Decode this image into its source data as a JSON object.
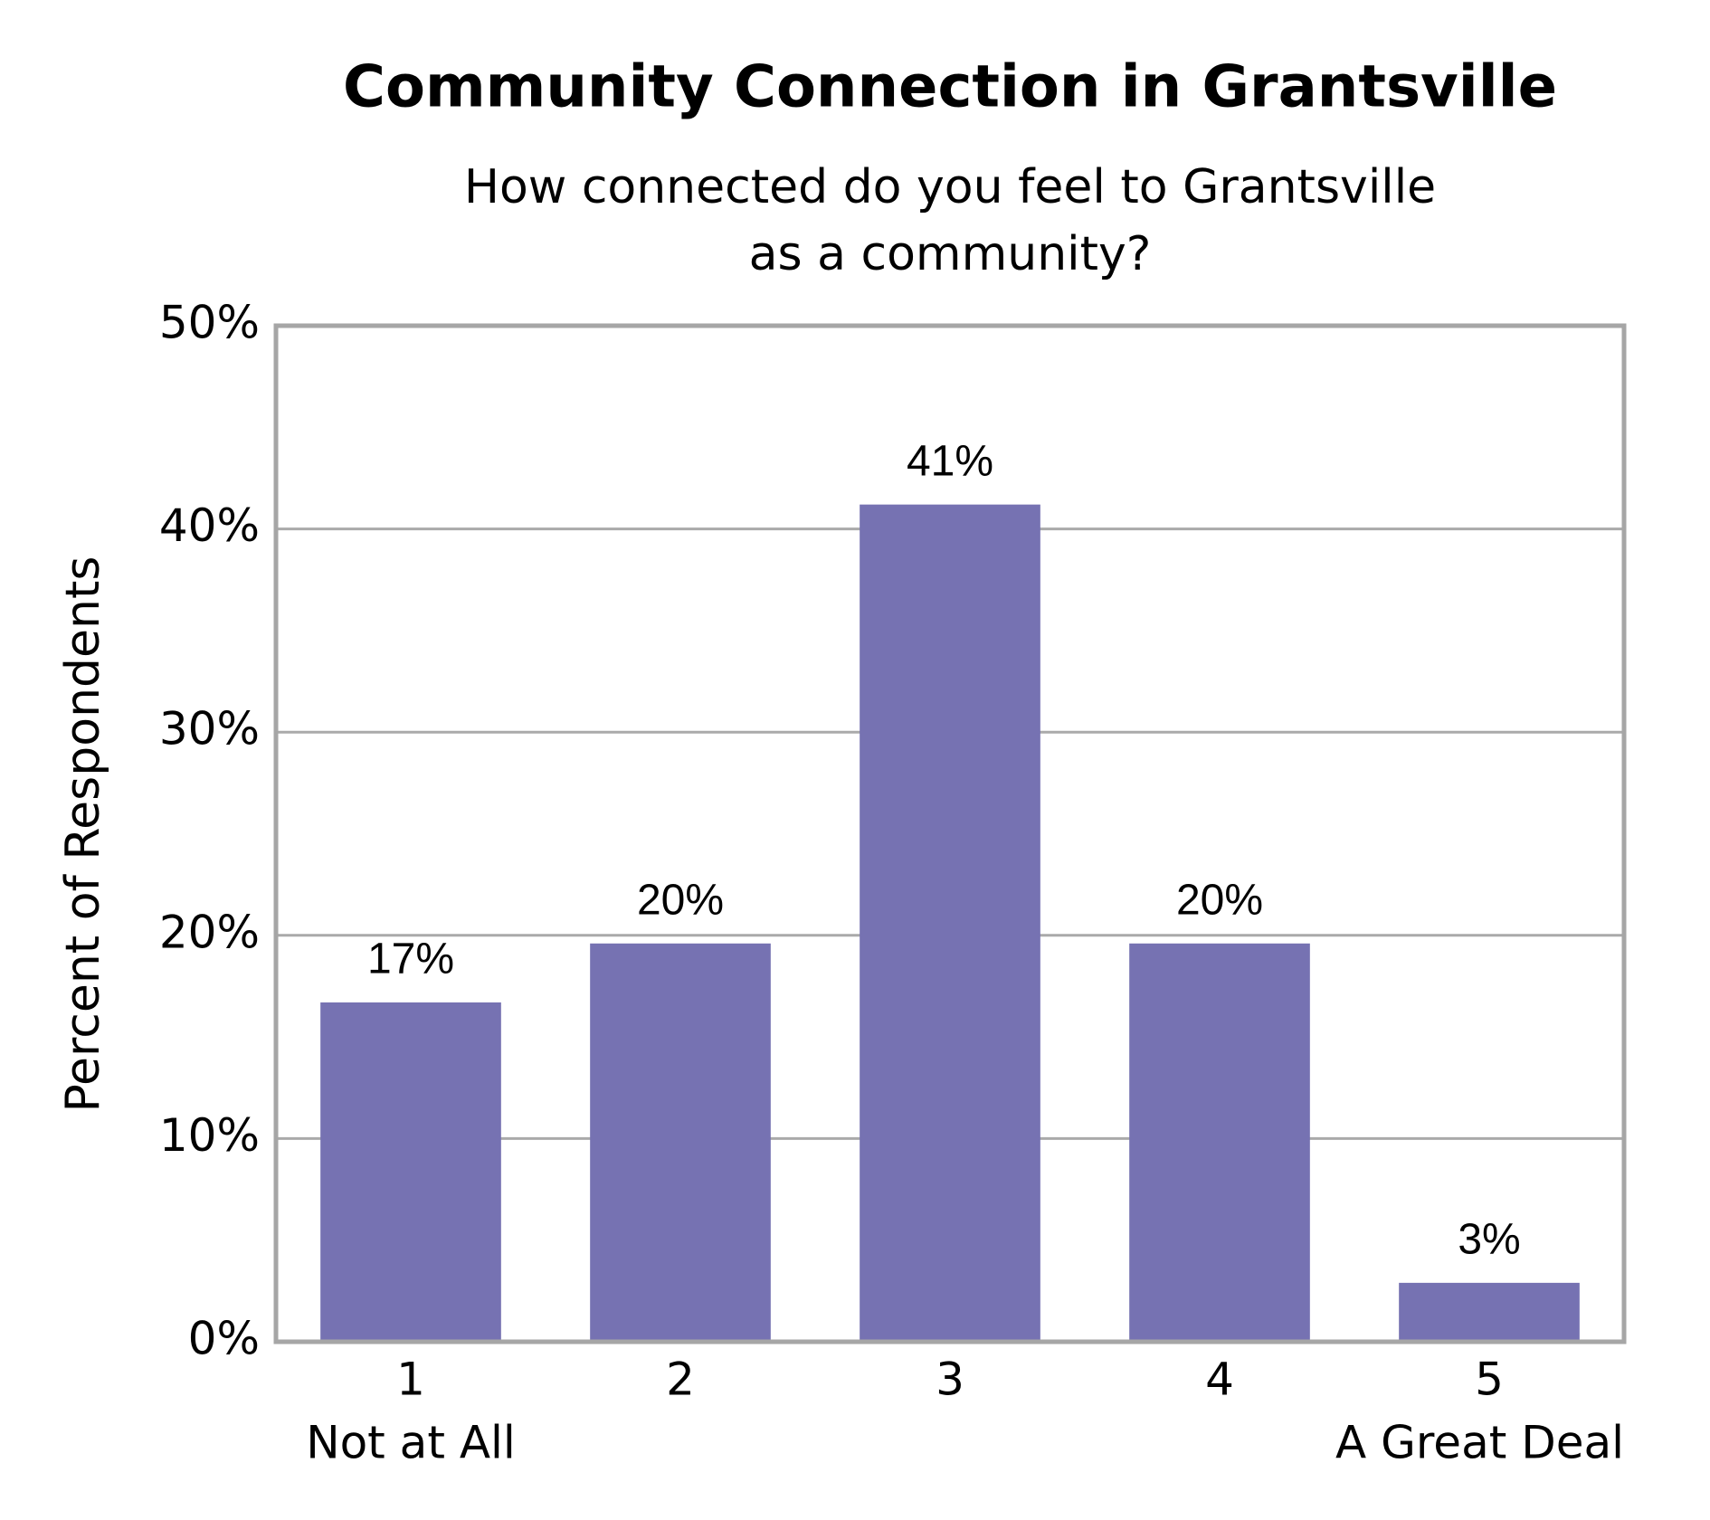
{
  "chart_data": {
    "type": "bar",
    "title": "Community Connection in Grantsville",
    "subtitle": [
      "How connected do you feel to Grantsville",
      "as a community?"
    ],
    "y_label": "Percent of Respondents",
    "categories": [
      "1",
      "2",
      "3",
      "4",
      "5"
    ],
    "category_sublabels": [
      "Not at All",
      null,
      null,
      null,
      "A Great Deal"
    ],
    "values": [
      16.7,
      19.6,
      41.2,
      19.6,
      2.9
    ],
    "value_labels": [
      "17%",
      "20%",
      "41%",
      "20%",
      "3%"
    ],
    "color": "#7672b2",
    "ylim": [
      0,
      50
    ],
    "yticks": [
      {
        "value": 0,
        "label": "0%"
      },
      {
        "value": 10,
        "label": "10%"
      },
      {
        "value": 20,
        "label": "20%"
      },
      {
        "value": 30,
        "label": "30%"
      },
      {
        "value": 40,
        "label": "40%"
      },
      {
        "value": 50,
        "label": "50%"
      }
    ],
    "grid": true
  }
}
